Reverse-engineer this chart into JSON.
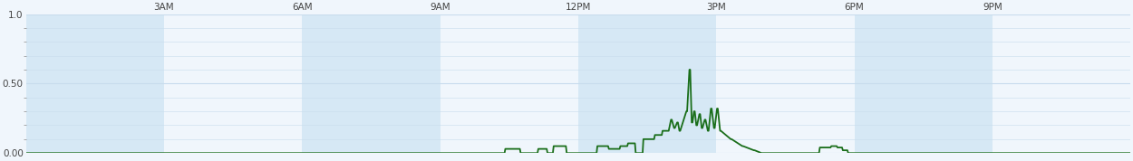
{
  "title": "",
  "xlabel": "",
  "ylabel": "",
  "xlim": [
    0,
    1440
  ],
  "ylim": [
    0,
    1.0
  ],
  "yticks": [
    0.0,
    0.5,
    1.0
  ],
  "ytick_labels": [
    "0.00",
    "0.50",
    "1.0"
  ],
  "xticks": [
    180,
    360,
    540,
    720,
    900,
    1080,
    1260
  ],
  "xtick_labels": [
    "3AM",
    "6AM",
    "9AM",
    "12PM",
    "3PM",
    "6PM",
    "9PM"
  ],
  "line_color": "#1a6e1a",
  "bg_blue": "#d6e8f5",
  "bg_white": "#f0f6fc",
  "grid_color": "#c8dced",
  "fig_bg": "#f0f6fc",
  "line_width": 1.3,
  "figsize": [
    12.5,
    1.78
  ],
  "dpi": 100
}
